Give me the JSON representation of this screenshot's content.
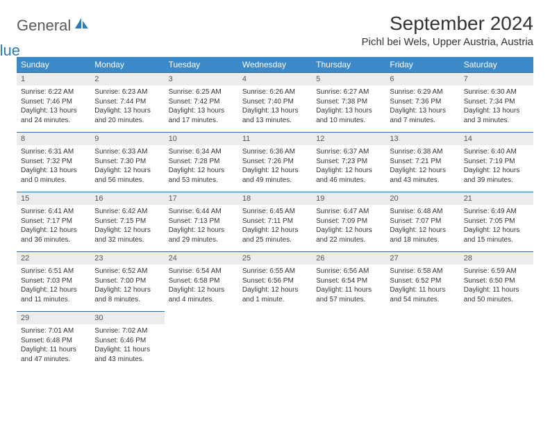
{
  "logo": {
    "word1": "General",
    "word2": "Blue"
  },
  "title": "September 2024",
  "location": "Pichl bei Wels, Upper Austria, Austria",
  "colors": {
    "header_bg": "#3b89c9",
    "header_text": "#ffffff",
    "daynum_bg": "#ececec",
    "row_border": "#2b6aa0",
    "logo_gray": "#5a5a5a",
    "logo_blue": "#2b7bbf"
  },
  "day_headers": [
    "Sunday",
    "Monday",
    "Tuesday",
    "Wednesday",
    "Thursday",
    "Friday",
    "Saturday"
  ],
  "weeks": [
    [
      {
        "n": "1",
        "sr": "6:22 AM",
        "ss": "7:46 PM",
        "dl": "13 hours and 24 minutes."
      },
      {
        "n": "2",
        "sr": "6:23 AM",
        "ss": "7:44 PM",
        "dl": "13 hours and 20 minutes."
      },
      {
        "n": "3",
        "sr": "6:25 AM",
        "ss": "7:42 PM",
        "dl": "13 hours and 17 minutes."
      },
      {
        "n": "4",
        "sr": "6:26 AM",
        "ss": "7:40 PM",
        "dl": "13 hours and 13 minutes."
      },
      {
        "n": "5",
        "sr": "6:27 AM",
        "ss": "7:38 PM",
        "dl": "13 hours and 10 minutes."
      },
      {
        "n": "6",
        "sr": "6:29 AM",
        "ss": "7:36 PM",
        "dl": "13 hours and 7 minutes."
      },
      {
        "n": "7",
        "sr": "6:30 AM",
        "ss": "7:34 PM",
        "dl": "13 hours and 3 minutes."
      }
    ],
    [
      {
        "n": "8",
        "sr": "6:31 AM",
        "ss": "7:32 PM",
        "dl": "13 hours and 0 minutes."
      },
      {
        "n": "9",
        "sr": "6:33 AM",
        "ss": "7:30 PM",
        "dl": "12 hours and 56 minutes."
      },
      {
        "n": "10",
        "sr": "6:34 AM",
        "ss": "7:28 PM",
        "dl": "12 hours and 53 minutes."
      },
      {
        "n": "11",
        "sr": "6:36 AM",
        "ss": "7:26 PM",
        "dl": "12 hours and 49 minutes."
      },
      {
        "n": "12",
        "sr": "6:37 AM",
        "ss": "7:23 PM",
        "dl": "12 hours and 46 minutes."
      },
      {
        "n": "13",
        "sr": "6:38 AM",
        "ss": "7:21 PM",
        "dl": "12 hours and 43 minutes."
      },
      {
        "n": "14",
        "sr": "6:40 AM",
        "ss": "7:19 PM",
        "dl": "12 hours and 39 minutes."
      }
    ],
    [
      {
        "n": "15",
        "sr": "6:41 AM",
        "ss": "7:17 PM",
        "dl": "12 hours and 36 minutes."
      },
      {
        "n": "16",
        "sr": "6:42 AM",
        "ss": "7:15 PM",
        "dl": "12 hours and 32 minutes."
      },
      {
        "n": "17",
        "sr": "6:44 AM",
        "ss": "7:13 PM",
        "dl": "12 hours and 29 minutes."
      },
      {
        "n": "18",
        "sr": "6:45 AM",
        "ss": "7:11 PM",
        "dl": "12 hours and 25 minutes."
      },
      {
        "n": "19",
        "sr": "6:47 AM",
        "ss": "7:09 PM",
        "dl": "12 hours and 22 minutes."
      },
      {
        "n": "20",
        "sr": "6:48 AM",
        "ss": "7:07 PM",
        "dl": "12 hours and 18 minutes."
      },
      {
        "n": "21",
        "sr": "6:49 AM",
        "ss": "7:05 PM",
        "dl": "12 hours and 15 minutes."
      }
    ],
    [
      {
        "n": "22",
        "sr": "6:51 AM",
        "ss": "7:03 PM",
        "dl": "12 hours and 11 minutes."
      },
      {
        "n": "23",
        "sr": "6:52 AM",
        "ss": "7:00 PM",
        "dl": "12 hours and 8 minutes."
      },
      {
        "n": "24",
        "sr": "6:54 AM",
        "ss": "6:58 PM",
        "dl": "12 hours and 4 minutes."
      },
      {
        "n": "25",
        "sr": "6:55 AM",
        "ss": "6:56 PM",
        "dl": "12 hours and 1 minute."
      },
      {
        "n": "26",
        "sr": "6:56 AM",
        "ss": "6:54 PM",
        "dl": "11 hours and 57 minutes."
      },
      {
        "n": "27",
        "sr": "6:58 AM",
        "ss": "6:52 PM",
        "dl": "11 hours and 54 minutes."
      },
      {
        "n": "28",
        "sr": "6:59 AM",
        "ss": "6:50 PM",
        "dl": "11 hours and 50 minutes."
      }
    ],
    [
      {
        "n": "29",
        "sr": "7:01 AM",
        "ss": "6:48 PM",
        "dl": "11 hours and 47 minutes."
      },
      {
        "n": "30",
        "sr": "7:02 AM",
        "ss": "6:46 PM",
        "dl": "11 hours and 43 minutes."
      },
      null,
      null,
      null,
      null,
      null
    ]
  ],
  "labels": {
    "sunrise": "Sunrise:",
    "sunset": "Sunset:",
    "daylight": "Daylight:"
  }
}
